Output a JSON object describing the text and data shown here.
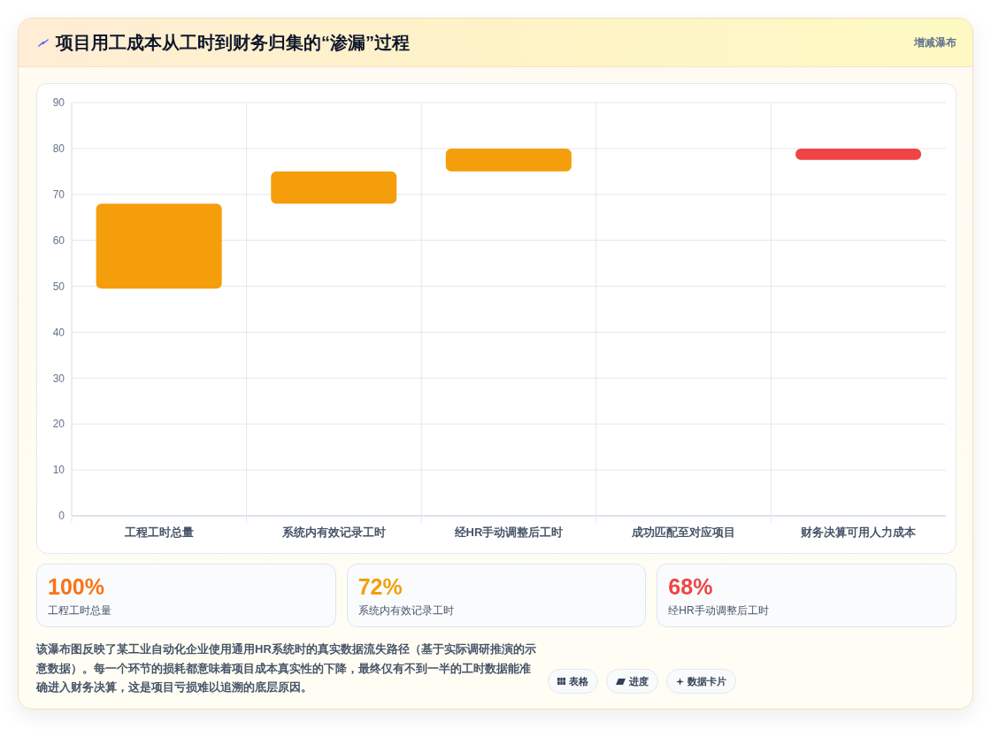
{
  "chart_data": [
    {
      "type": "bar",
      "title": "项目用工成本从工时到财务归集的“渗漏”过程",
      "categories": [
        "工程工时总量",
        "系统内有效记录工时",
        "经HR手动调整后工时",
        "成功匹配至对应项目",
        "财务决算可用人力成本"
      ],
      "values": [
        18.5,
        7,
        5,
        null,
        2.5
      ],
      "base": [
        49.5,
        68,
        75,
        null,
        77.5
      ],
      "colors": [
        "#f59e0b",
        "#f59e0b",
        "#f59e0b",
        null,
        "#ef4444"
      ],
      "ylim": [
        0,
        90
      ],
      "yticks": [
        0,
        10,
        20,
        30,
        40,
        50,
        60,
        70,
        80,
        90
      ],
      "grid": true,
      "annotations": [
        "增减瀑布",
        "该瀑布图反映了某工业自动化企业使用通用HR系统时的真实数据流失路径（基于实际调研推演的示意数据）。每一个环节的损耗都意味着项目成本真实性的下降，最终仅有不到一半的工时数据能准确进入财务决算，这是项目亏损难以追溯的底层原因。",
        "表格",
        "进度",
        "数据卡片"
      ]
    },
    {
      "type": "other",
      "annotations": [
        "100%",
        "工程工时总量",
        "72%",
        "系统内有效记录工时",
        "68%",
        "经HR手动调整后工时"
      ]
    }
  ]
}
